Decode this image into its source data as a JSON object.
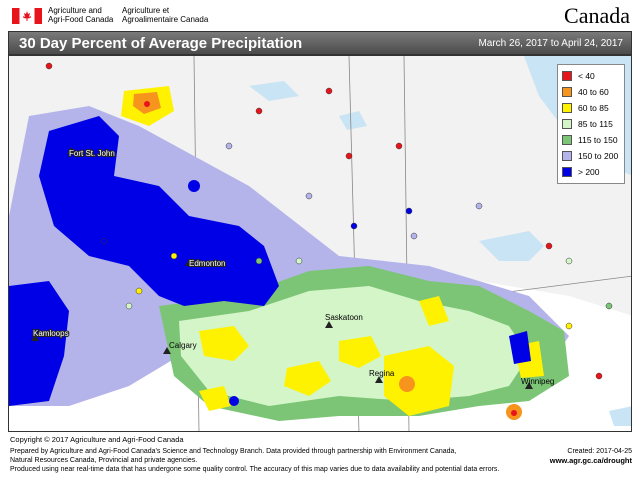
{
  "header": {
    "dept_en": [
      "Agriculture and",
      "Agri-Food Canada"
    ],
    "dept_fr": [
      "Agriculture et",
      "Agroalimentaire Canada"
    ],
    "wordmark": "Canada"
  },
  "map_title": "30 Day Percent of Average Precipitation",
  "date_range": "March 26, 2017 to April 24, 2017",
  "legend": [
    {
      "label": "< 40",
      "color": "#e8141b"
    },
    {
      "label": "40 to 60",
      "color": "#f7941d"
    },
    {
      "label": "60 to 85",
      "color": "#fff200"
    },
    {
      "label": "85 to 115",
      "color": "#d4f5c8"
    },
    {
      "label": "115 to 150",
      "color": "#7cc576"
    },
    {
      "label": "150 to 200",
      "color": "#b4b4ea"
    },
    {
      "label": "> 200",
      "color": "#0000e6"
    }
  ],
  "cities": [
    "Fort St. John",
    "Edmonton",
    "Saskatoon",
    "Calgary",
    "Kamloops",
    "Regina",
    "Winnipeg"
  ],
  "copyright": "Copyright © 2017 Agriculture and Agri-Food Canada",
  "footer_lines": [
    "Prepared by Agriculture and Agri-Food Canada's Science and Technology Branch. Data provided through partnership with Environment Canada,",
    "Natural Resources Canada, Provincial and private agencies.",
    "Produced using near real-time data that has undergone some quality control. The accuracy of this map varies due to data availability and potential data errors."
  ],
  "created": "Created: 2017-04-25",
  "website": "www.agr.gc.ca/drought"
}
